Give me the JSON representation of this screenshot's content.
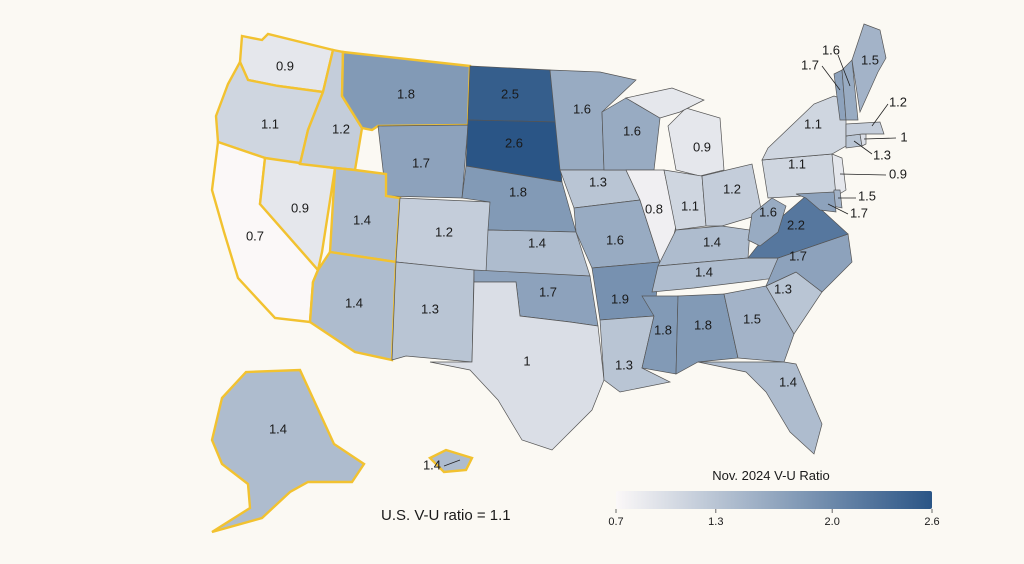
{
  "legend": {
    "title": "Nov. 2024 V-U Ratio",
    "min": 0.7,
    "max": 2.6,
    "ticks": [
      "0.7",
      "1.3",
      "2.0",
      "2.6"
    ],
    "tick_values": [
      0.7,
      1.3,
      2.0,
      2.6
    ],
    "color_low": "#fbf8f8",
    "color_high": "#2a5586"
  },
  "us_ratio": "U.S. V-U ratio = 1.1",
  "highlight_color": "#f2c230",
  "states": [
    {
      "id": "WA",
      "value": "0.9",
      "western": true
    },
    {
      "id": "OR",
      "value": "1.1",
      "western": true
    },
    {
      "id": "CA",
      "value": "0.7",
      "western": true
    },
    {
      "id": "NV",
      "value": "0.9",
      "western": true
    },
    {
      "id": "ID",
      "value": "1.2",
      "western": true
    },
    {
      "id": "MT",
      "value": "1.8",
      "western": true
    },
    {
      "id": "WY",
      "value": "1.7",
      "western": false
    },
    {
      "id": "UT",
      "value": "1.4",
      "western": true
    },
    {
      "id": "AZ",
      "value": "1.4",
      "western": true
    },
    {
      "id": "CO",
      "value": "1.2",
      "western": false
    },
    {
      "id": "NM",
      "value": "1.3",
      "western": false
    },
    {
      "id": "ND",
      "value": "2.5",
      "western": false
    },
    {
      "id": "SD",
      "value": "2.6",
      "western": false
    },
    {
      "id": "NE",
      "value": "1.8",
      "western": false
    },
    {
      "id": "KS",
      "value": "1.4",
      "western": false
    },
    {
      "id": "OK",
      "value": "1.7",
      "western": false
    },
    {
      "id": "TX",
      "value": "1",
      "western": false
    },
    {
      "id": "MN",
      "value": "1.6",
      "western": false
    },
    {
      "id": "IA",
      "value": "1.3",
      "western": false
    },
    {
      "id": "MO",
      "value": "1.6",
      "western": false
    },
    {
      "id": "AR",
      "value": "1.9",
      "western": false
    },
    {
      "id": "LA",
      "value": "1.3",
      "western": false
    },
    {
      "id": "WI",
      "value": "1.6",
      "western": false
    },
    {
      "id": "IL",
      "value": "0.8",
      "western": false
    },
    {
      "id": "MI",
      "value": "0.9",
      "western": false
    },
    {
      "id": "IN",
      "value": "1.1",
      "western": false
    },
    {
      "id": "OH",
      "value": "1.2",
      "western": false
    },
    {
      "id": "KY",
      "value": "1.4",
      "western": false
    },
    {
      "id": "TN",
      "value": "1.4",
      "western": false
    },
    {
      "id": "MS",
      "value": "1.8",
      "western": false
    },
    {
      "id": "AL",
      "value": "1.8",
      "western": false
    },
    {
      "id": "GA",
      "value": "1.5",
      "western": false
    },
    {
      "id": "FL",
      "value": "1.4",
      "western": false
    },
    {
      "id": "SC",
      "value": "1.3",
      "western": false
    },
    {
      "id": "NC",
      "value": "1.7",
      "western": false
    },
    {
      "id": "VA",
      "value": "2.2",
      "western": false
    },
    {
      "id": "WV",
      "value": "1.6",
      "western": false
    },
    {
      "id": "PA",
      "value": "1.1",
      "western": false
    },
    {
      "id": "NY",
      "value": "1.1",
      "western": false
    },
    {
      "id": "NJ",
      "value": "0.9",
      "western": false
    },
    {
      "id": "DE",
      "value": "1.5",
      "western": false
    },
    {
      "id": "MD",
      "value": "1.7",
      "western": false
    },
    {
      "id": "CT",
      "value": "1.3",
      "western": false
    },
    {
      "id": "RI",
      "value": "1",
      "western": false
    },
    {
      "id": "MA",
      "value": "1.2",
      "western": false
    },
    {
      "id": "VT",
      "value": "1.7",
      "western": false
    },
    {
      "id": "NH",
      "value": "1.6",
      "western": false
    },
    {
      "id": "ME",
      "value": "1.5",
      "western": false
    },
    {
      "id": "AK",
      "value": "1.4",
      "western": true
    },
    {
      "id": "HI",
      "value": "1.4",
      "western": true
    }
  ]
}
